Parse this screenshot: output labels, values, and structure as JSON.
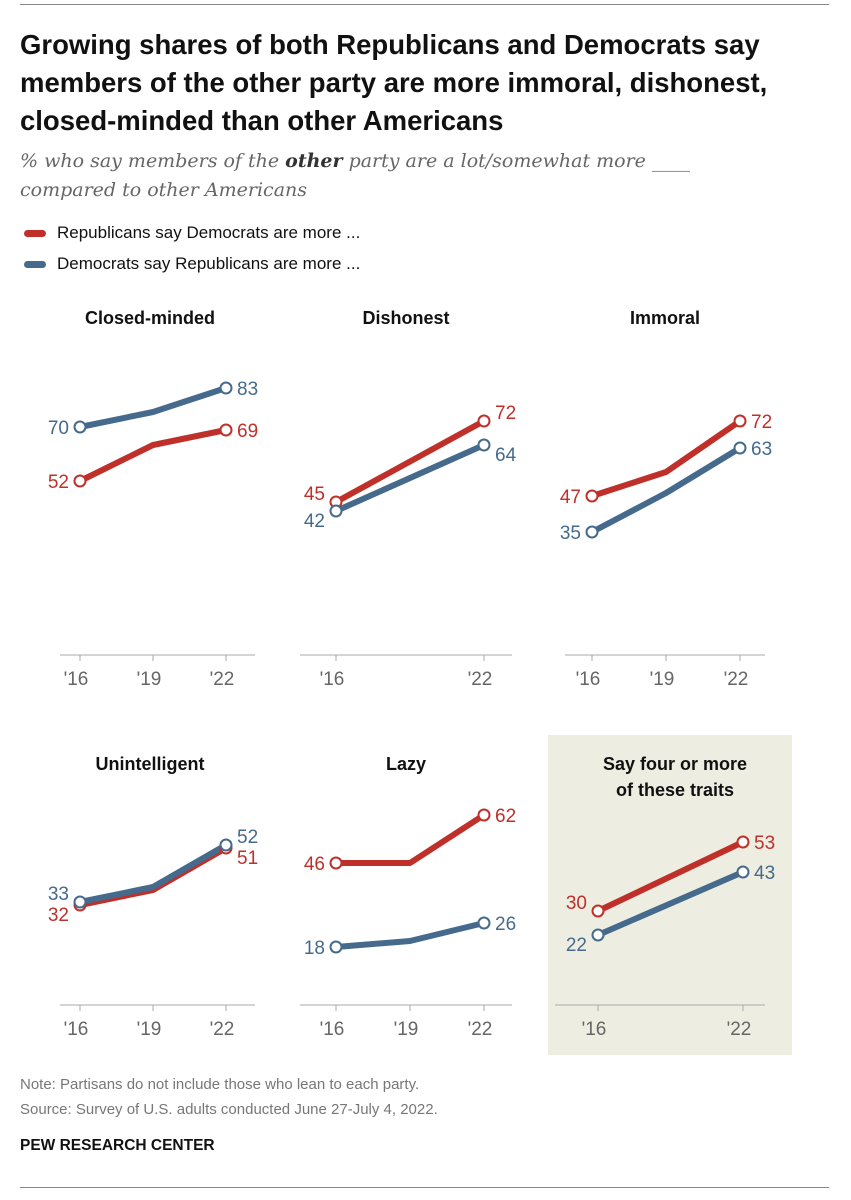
{
  "title": "Growing shares of both Republicans and Democrats say members of the other party are more immoral, dishonest, closed-minded than other Americans",
  "subtitle": {
    "before": "% who say members of the ",
    "bold": "other",
    "after": " party are a lot/somewhat more ____ compared to other Americans"
  },
  "legend": [
    {
      "label": "Republicans say Democrats are more ...",
      "color": "#c0302a"
    },
    {
      "label": "Democrats say Republicans are more ...",
      "color": "#466a8c"
    }
  ],
  "note": "Note: Partisans do not include those who lean to each party.",
  "source": "Source: Survey of U.S. adults conducted June 27-July 4, 2022.",
  "brand": "PEW RESEARCH CENTER",
  "chart_data": {
    "type": "line",
    "colors": {
      "republicans": "#c0302a",
      "democrats": "#466a8c",
      "highlight_bg": "#eeede2"
    },
    "panels": [
      {
        "title": "Closed-minded",
        "x": [
          2016,
          2019,
          2022
        ],
        "tick_labels": [
          "'16",
          "'19",
          "'22"
        ],
        "republicans": [
          52,
          64,
          69
        ],
        "democrats": [
          70,
          75,
          83
        ],
        "labeled": "ends"
      },
      {
        "title": "Dishonest",
        "x": [
          2016,
          2022
        ],
        "tick_labels": [
          "'16",
          "'22"
        ],
        "republicans": [
          45,
          72
        ],
        "democrats": [
          42,
          64
        ],
        "labeled": "ends"
      },
      {
        "title": "Immoral",
        "x": [
          2016,
          2019,
          2022
        ],
        "tick_labels": [
          "'16",
          "'19",
          "'22"
        ],
        "republicans": [
          47,
          55,
          72
        ],
        "democrats": [
          35,
          48,
          63
        ],
        "labeled": "ends"
      },
      {
        "title": "Unintelligent",
        "x": [
          2016,
          2019,
          2022
        ],
        "tick_labels": [
          "'16",
          "'19",
          "'22"
        ],
        "republicans": [
          32,
          37,
          51
        ],
        "democrats": [
          33,
          38,
          52
        ],
        "labeled": "ends"
      },
      {
        "title": "Lazy",
        "x": [
          2016,
          2019,
          2022
        ],
        "tick_labels": [
          "'16",
          "'19",
          "'22"
        ],
        "republicans": [
          46,
          46,
          62
        ],
        "democrats": [
          18,
          20,
          26
        ],
        "labeled": "ends"
      },
      {
        "title": "Say four or more of these traits",
        "x": [
          2016,
          2022
        ],
        "tick_labels": [
          "'16",
          "'22"
        ],
        "republicans": [
          30,
          53
        ],
        "democrats": [
          22,
          43
        ],
        "labeled": "ends",
        "highlighted": true
      }
    ]
  }
}
